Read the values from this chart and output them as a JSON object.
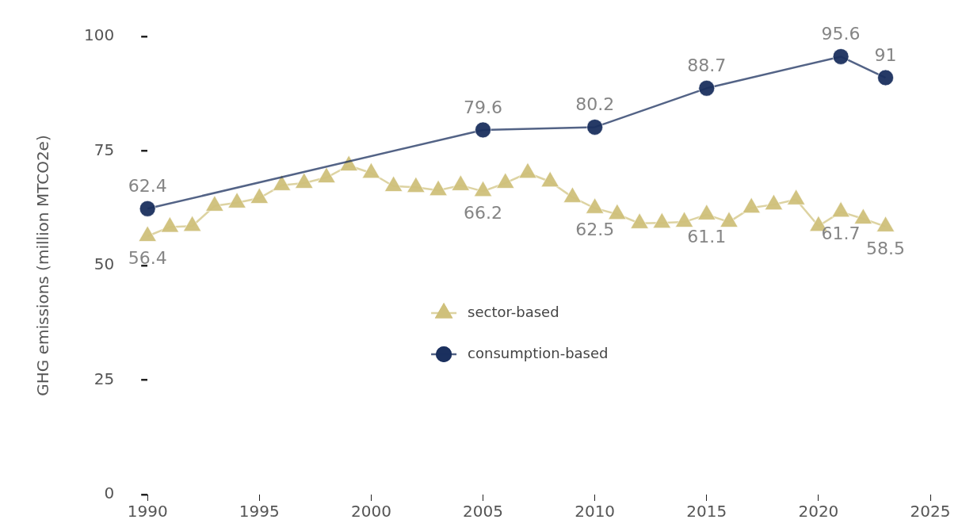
{
  "chart_data": {
    "type": "line",
    "ylabel": "GHG emissions (million MTCO2e)",
    "xlim": [
      1990,
      2025
    ],
    "xticks": [
      1990,
      1995,
      2000,
      2005,
      2010,
      2015,
      2020,
      2025
    ],
    "ylim": [
      0,
      100
    ],
    "yticks": [
      0,
      25,
      50,
      75,
      100
    ],
    "grid": false,
    "legend": "center",
    "series": [
      {
        "name": "sector-based",
        "color": "#cfc07a",
        "marker": "triangle",
        "x": [
          1990,
          1991,
          1992,
          1993,
          1994,
          1995,
          1996,
          1997,
          1998,
          1999,
          2000,
          2001,
          2002,
          2003,
          2004,
          2005,
          2006,
          2007,
          2008,
          2009,
          2010,
          2011,
          2012,
          2013,
          2014,
          2015,
          2016,
          2017,
          2018,
          2019,
          2020,
          2021,
          2022,
          2023
        ],
        "values": [
          56.4,
          58.4,
          58.6,
          63,
          63.7,
          64.7,
          67.5,
          68,
          69.2,
          71.8,
          70.2,
          67.3,
          67.1,
          66.4,
          67.5,
          66.2,
          68,
          70.2,
          68.3,
          64.9,
          62.5,
          61.2,
          59.2,
          59.3,
          59.5,
          61.1,
          59.5,
          62.6,
          63.3,
          64.4,
          58.6,
          61.7,
          60.2,
          58.5
        ],
        "value_labels": [
          "56.4",
          null,
          null,
          null,
          null,
          null,
          null,
          null,
          null,
          null,
          null,
          null,
          null,
          null,
          null,
          "66.2",
          null,
          null,
          null,
          null,
          "62.5",
          null,
          null,
          null,
          null,
          "61.1",
          null,
          null,
          null,
          null,
          null,
          "61.7",
          null,
          "58.5"
        ]
      },
      {
        "name": "consumption-based",
        "color": "#1a2f5e",
        "marker": "circle",
        "x": [
          1990,
          2005,
          2010,
          2015,
          2021,
          2023
        ],
        "values": [
          62.4,
          79.6,
          80.2,
          88.7,
          95.6,
          91
        ],
        "value_labels": [
          "62.4",
          "79.6",
          "80.2",
          "88.7",
          "95.6",
          "91"
        ]
      }
    ]
  }
}
